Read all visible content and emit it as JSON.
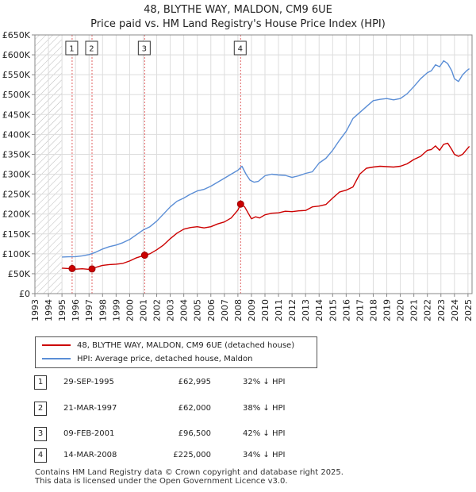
{
  "chart_data": {
    "type": "line",
    "title": "48, BLYTHE WAY, MALDON, CM9 6UE",
    "subtitle": "Price paid vs. HM Land Registry's House Price Index (HPI)",
    "xlabel": "",
    "ylabel": "",
    "xlim": [
      1993,
      2025.3
    ],
    "ylim": [
      0,
      650000
    ],
    "y_ticks": [
      0,
      50000,
      100000,
      150000,
      200000,
      250000,
      300000,
      350000,
      400000,
      450000,
      500000,
      550000,
      600000,
      650000
    ],
    "y_tick_labels": [
      "£0",
      "£50K",
      "£100K",
      "£150K",
      "£200K",
      "£250K",
      "£300K",
      "£350K",
      "£400K",
      "£450K",
      "£500K",
      "£550K",
      "£600K",
      "£650K"
    ],
    "x_ticks": [
      1993,
      1994,
      1995,
      1996,
      1997,
      1998,
      1999,
      2000,
      2001,
      2002,
      2003,
      2004,
      2005,
      2006,
      2007,
      2008,
      2009,
      2010,
      2011,
      2012,
      2013,
      2014,
      2015,
      2016,
      2017,
      2018,
      2019,
      2020,
      2021,
      2022,
      2023,
      2024,
      2025
    ],
    "x_tick_labels": [
      "1993",
      "1994",
      "1995",
      "1996",
      "1997",
      "1998",
      "1999",
      "2000",
      "2001",
      "2002",
      "2003",
      "2004",
      "2005",
      "2006",
      "2007",
      "2008",
      "2009",
      "2010",
      "2011",
      "2012",
      "2013",
      "2014",
      "2015",
      "2016",
      "2017",
      "2018",
      "2019",
      "2020",
      "2021",
      "2022",
      "2023",
      "2024",
      "2025"
    ],
    "grid": true,
    "hatch_before": 1995.0,
    "series": [
      {
        "name": "48, BLYTHE WAY, MALDON, CM9 6UE (detached house)",
        "color": "#cc0000",
        "x": [
          1995.0,
          1995.5,
          1995.75,
          1996.0,
          1996.5,
          1997.0,
          1997.22,
          1997.6,
          1998.0,
          1998.5,
          1999.0,
          1999.5,
          2000.0,
          2000.5,
          2001.11,
          2001.5,
          2002.0,
          2002.5,
          2003.0,
          2003.5,
          2004.0,
          2004.5,
          2005.0,
          2005.5,
          2006.0,
          2006.5,
          2007.0,
          2007.5,
          2008.0,
          2008.2,
          2008.5,
          2008.8,
          2009.0,
          2009.3,
          2009.6,
          2010.0,
          2010.5,
          2011.0,
          2011.5,
          2012.0,
          2012.5,
          2013.0,
          2013.5,
          2014.0,
          2014.5,
          2015.0,
          2015.5,
          2016.0,
          2016.5,
          2017.0,
          2017.5,
          2018.0,
          2018.5,
          2019.0,
          2019.5,
          2020.0,
          2020.5,
          2021.0,
          2021.5,
          2022.0,
          2022.3,
          2022.6,
          2022.9,
          2023.2,
          2023.5,
          2023.8,
          2024.0,
          2024.3,
          2024.6,
          2024.9,
          2025.1
        ],
        "y": [
          64000,
          63000,
          62995,
          61500,
          62500,
          61000,
          62000,
          67000,
          71000,
          73000,
          74000,
          76000,
          82000,
          90000,
          96500,
          100000,
          110000,
          122000,
          138000,
          152000,
          162000,
          166000,
          168000,
          165000,
          168000,
          175000,
          180000,
          190000,
          210000,
          225000,
          218000,
          200000,
          188000,
          193000,
          190000,
          198000,
          202000,
          203000,
          207000,
          206000,
          208000,
          209000,
          218000,
          220000,
          224000,
          240000,
          255000,
          260000,
          268000,
          300000,
          315000,
          318000,
          320000,
          319000,
          318000,
          320000,
          326000,
          337000,
          345000,
          360000,
          362000,
          371000,
          360000,
          375000,
          378000,
          362000,
          350000,
          345000,
          350000,
          362000,
          370000
        ]
      },
      {
        "name": "HPI: Average price, detached house, Maldon",
        "color": "#5b8ed6",
        "x": [
          1995.0,
          1995.5,
          1996.0,
          1996.5,
          1997.0,
          1997.5,
          1998.0,
          1998.5,
          1999.0,
          1999.5,
          2000.0,
          2000.5,
          2001.0,
          2001.5,
          2002.0,
          2002.5,
          2003.0,
          2003.5,
          2004.0,
          2004.5,
          2005.0,
          2005.5,
          2006.0,
          2006.5,
          2007.0,
          2007.5,
          2008.0,
          2008.3,
          2008.6,
          2008.9,
          2009.2,
          2009.5,
          2010.0,
          2010.5,
          2011.0,
          2011.5,
          2012.0,
          2012.5,
          2013.0,
          2013.5,
          2014.0,
          2014.5,
          2015.0,
          2015.5,
          2016.0,
          2016.5,
          2017.0,
          2017.5,
          2018.0,
          2018.5,
          2019.0,
          2019.5,
          2020.0,
          2020.5,
          2021.0,
          2021.5,
          2022.0,
          2022.3,
          2022.6,
          2022.9,
          2023.2,
          2023.5,
          2023.8,
          2024.0,
          2024.3,
          2024.6,
          2024.9,
          2025.1
        ],
        "y": [
          92000,
          92500,
          93000,
          95000,
          98000,
          104000,
          112000,
          118000,
          122000,
          128000,
          136000,
          148000,
          160000,
          168000,
          182000,
          200000,
          218000,
          232000,
          240000,
          250000,
          258000,
          262000,
          270000,
          280000,
          290000,
          300000,
          310000,
          320000,
          300000,
          285000,
          280000,
          282000,
          296000,
          300000,
          298000,
          297000,
          292000,
          296000,
          302000,
          306000,
          328000,
          340000,
          360000,
          385000,
          408000,
          440000,
          455000,
          470000,
          485000,
          488000,
          490000,
          487000,
          490000,
          502000,
          520000,
          540000,
          555000,
          560000,
          575000,
          570000,
          585000,
          578000,
          560000,
          540000,
          533000,
          550000,
          560000,
          565000
        ]
      }
    ],
    "sales": [
      {
        "label": "1",
        "x": 1995.75,
        "y": 62995
      },
      {
        "label": "2",
        "x": 1997.22,
        "y": 62000
      },
      {
        "label": "3",
        "x": 2001.11,
        "y": 96500
      },
      {
        "label": "4",
        "x": 2008.2,
        "y": 225000
      }
    ]
  },
  "legend": {
    "property": "48, BLYTHE WAY, MALDON, CM9 6UE (detached house)",
    "hpi": "HPI: Average price, detached house, Maldon"
  },
  "sales_table": [
    {
      "num": "1",
      "date": "29-SEP-1995",
      "price": "£62,995",
      "hpi": "32% ↓ HPI"
    },
    {
      "num": "2",
      "date": "21-MAR-1997",
      "price": "£62,000",
      "hpi": "38% ↓ HPI"
    },
    {
      "num": "3",
      "date": "09-FEB-2001",
      "price": "£96,500",
      "hpi": "42% ↓ HPI"
    },
    {
      "num": "4",
      "date": "14-MAR-2008",
      "price": "£225,000",
      "hpi": "34% ↓ HPI"
    }
  ],
  "footer": {
    "line1": "Contains HM Land Registry data © Crown copyright and database right 2025.",
    "line2": "This data is licensed under the Open Government Licence v3.0."
  }
}
